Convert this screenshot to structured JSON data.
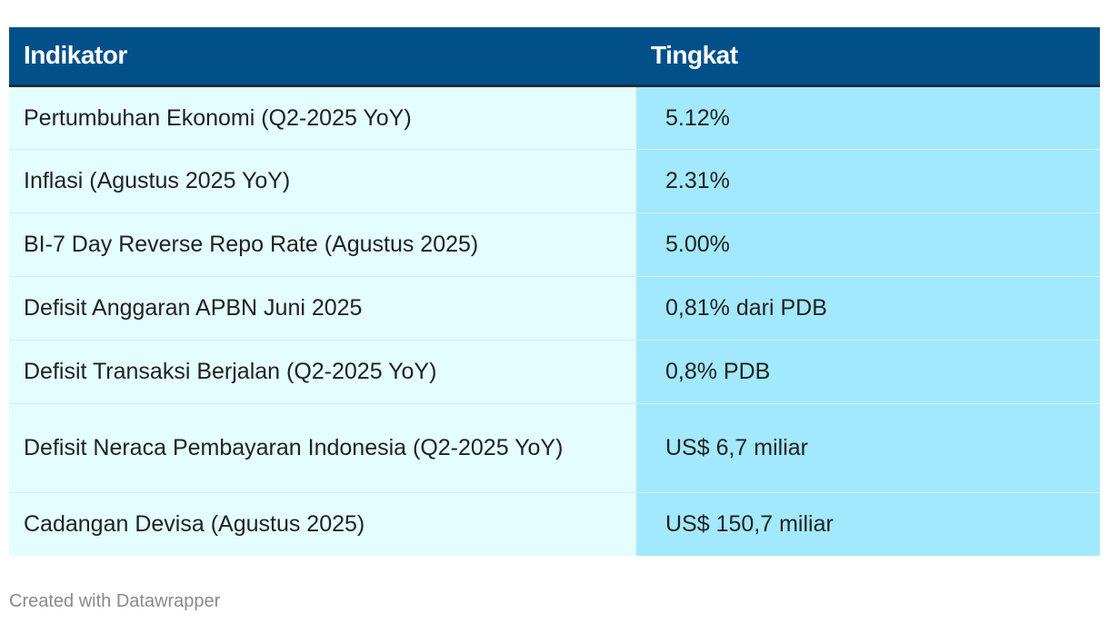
{
  "table": {
    "headers": [
      "Indikator",
      "Tingkat"
    ],
    "rows": [
      {
        "indikator": "Pertumbuhan Ekonomi (Q2-2025 YoY)",
        "tingkat": "5.12%"
      },
      {
        "indikator": "Inflasi (Agustus 2025 YoY)",
        "tingkat": "2.31%"
      },
      {
        "indikator": "BI-7 Day Reverse Repo Rate (Agustus 2025)",
        "tingkat": "5.00%"
      },
      {
        "indikator": "Defisit Anggaran APBN Juni 2025",
        "tingkat": "0,81% dari PDB"
      },
      {
        "indikator": "Defisit Transaksi Berjalan (Q2-2025 YoY)",
        "tingkat": "0,8% PDB"
      },
      {
        "indikator": "Defisit Neraca Pembayaran Indonesia (Q2-2025 YoY)",
        "tingkat": "US$ 6,7 miliar"
      },
      {
        "indikator": "Cadangan Devisa (Agustus 2025)",
        "tingkat": "US$ 150,7 miliar"
      }
    ]
  },
  "chart_data": {
    "type": "table",
    "columns": [
      "Indikator",
      "Tingkat"
    ],
    "rows": [
      [
        "Pertumbuhan Ekonomi (Q2-2025 YoY)",
        "5.12%"
      ],
      [
        "Inflasi (Agustus 2025 YoY)",
        "2.31%"
      ],
      [
        "BI-7 Day Reverse Repo Rate (Agustus 2025)",
        "5.00%"
      ],
      [
        "Defisit Anggaran APBN Juni 2025",
        "0,81% dari PDB"
      ],
      [
        "Defisit Transaksi Berjalan (Q2-2025 YoY)",
        "0,8% PDB"
      ],
      [
        "Defisit Neraca Pembayaran Indonesia (Q2-2025 YoY)",
        "US$ 6,7 miliar"
      ],
      [
        "Cadangan Devisa (Agustus 2025)",
        "US$ 150,7 miliar"
      ]
    ]
  },
  "colors": {
    "header_bg": "#01508a",
    "indicator_col_bg": "#e4fdfe",
    "value_col_bg": "#a2e9fd"
  },
  "footer": {
    "credit": "Created with Datawrapper"
  }
}
